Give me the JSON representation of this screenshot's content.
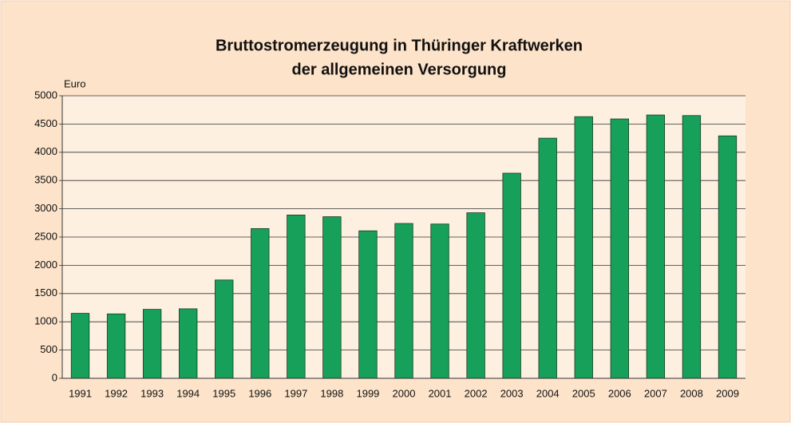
{
  "chart_data": {
    "type": "bar",
    "title": "Bruttostromerzeugung in Thüringer Kraftwerken",
    "subtitle": "der allgemeinen Versorgung",
    "y_label": "Euro",
    "categories": [
      "1991",
      "1992",
      "1993",
      "1994",
      "1995",
      "1996",
      "1997",
      "1998",
      "1999",
      "2000",
      "2001",
      "2002",
      "2003",
      "2004",
      "2005",
      "2006",
      "2007",
      "2008",
      "2009"
    ],
    "values": [
      1150,
      1140,
      1220,
      1230,
      1740,
      2650,
      2890,
      2860,
      2610,
      2740,
      2730,
      2930,
      3630,
      4250,
      4630,
      4590,
      4660,
      4650,
      4290
    ],
    "color": "#16a05a",
    "ylim": [
      0,
      5000
    ],
    "yticks": [
      0,
      500,
      1000,
      1500,
      2000,
      2500,
      3000,
      3500,
      4000,
      4500,
      5000
    ],
    "grid": true
  }
}
